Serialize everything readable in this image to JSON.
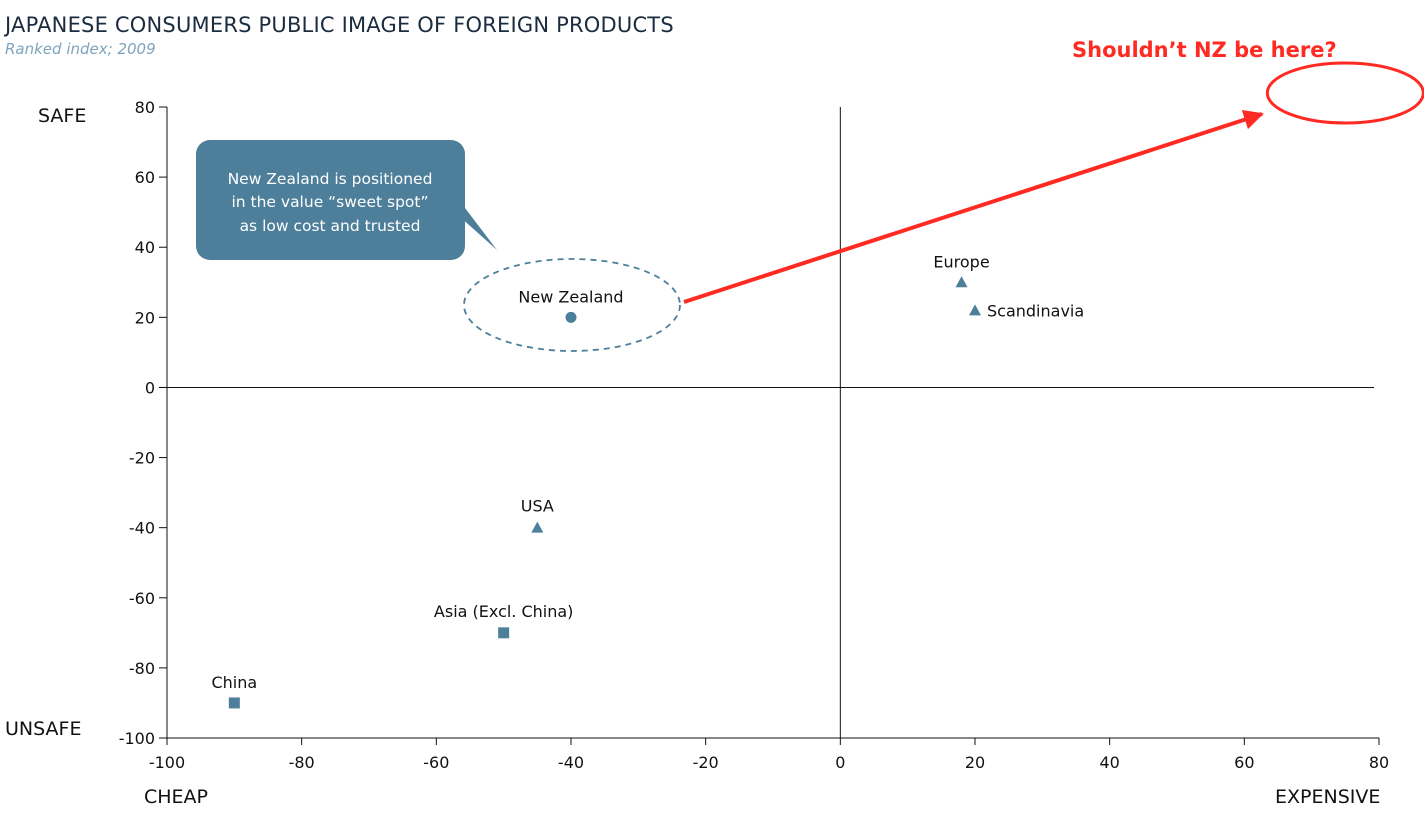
{
  "title": "JAPANESE CONSUMERS PUBLIC IMAGE OF FOREIGN PRODUCTS",
  "subtitle": "Ranked index; 2009",
  "quadrant_labels": {
    "top": "SAFE",
    "bottom": "UNSAFE",
    "left": "CHEAP",
    "right": "EXPENSIVE"
  },
  "callout": {
    "lines": [
      "New Zealand is positioned",
      "in the value “sweet spot”",
      "as low cost and trusted"
    ]
  },
  "annotation": {
    "text": "Shouldn’t NZ be here?",
    "target": {
      "x": 75,
      "y": 84
    }
  },
  "colors": {
    "marker": "#4d7f9b",
    "callout_bg": "#4d7f9b",
    "annotation": "#ff2a22",
    "title": "#1b2c3f",
    "subtitle": "#7fa3bd"
  },
  "chart_data": {
    "type": "scatter",
    "title": "JAPANESE CONSUMERS PUBLIC IMAGE OF FOREIGN PRODUCTS",
    "subtitle": "Ranked index; 2009",
    "xlim": [
      -100,
      80
    ],
    "ylim": [
      -100,
      80
    ],
    "xticks": [
      -100,
      -80,
      -60,
      -40,
      -20,
      0,
      20,
      40,
      60,
      80
    ],
    "yticks": [
      80,
      60,
      40,
      20,
      0,
      -20,
      -40,
      -60,
      -80,
      -100
    ],
    "grid": false,
    "points": [
      {
        "label": "New Zealand",
        "x": -40,
        "y": 20,
        "marker": "circle"
      },
      {
        "label": "Europe",
        "x": 18,
        "y": 30,
        "marker": "triangle"
      },
      {
        "label": "Scandinavia",
        "x": 20,
        "y": 22,
        "marker": "triangle"
      },
      {
        "label": "USA",
        "x": -45,
        "y": -40,
        "marker": "triangle"
      },
      {
        "label": "Asia (Excl. China)",
        "x": -50,
        "y": -70,
        "marker": "square"
      },
      {
        "label": "China",
        "x": -90,
        "y": -90,
        "marker": "square"
      }
    ]
  }
}
